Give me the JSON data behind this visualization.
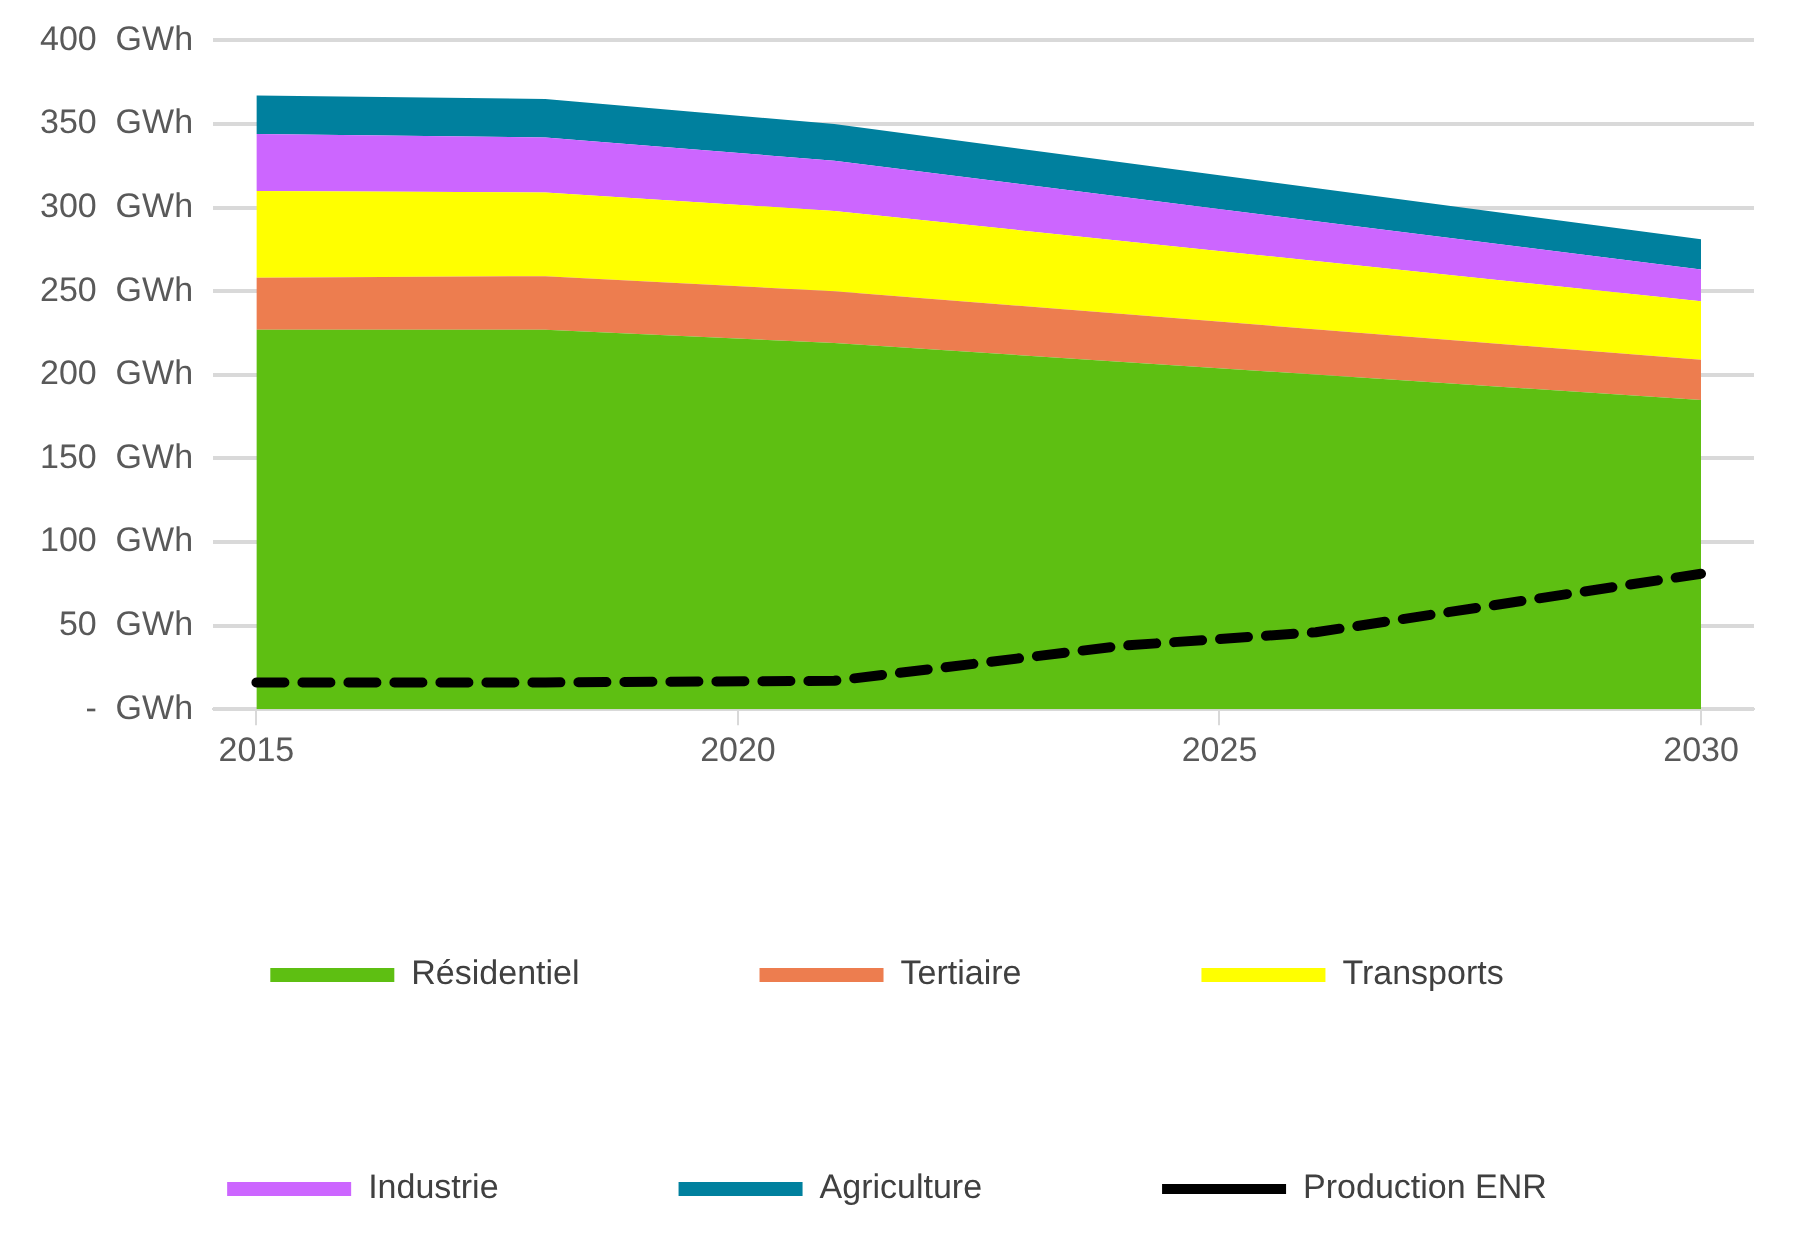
{
  "chart_data": {
    "type": "area",
    "stacked": true,
    "grid": "y",
    "legend": "bottom",
    "xlim": [
      2014.55,
      2030.55
    ],
    "xticks": [
      2015,
      2020,
      2025,
      2030
    ],
    "ylim": [
      0,
      400
    ],
    "yticks": [
      {
        "value": 0,
        "label": "-  GWh"
      },
      {
        "value": 50,
        "label": "50  GWh"
      },
      {
        "value": 100,
        "label": "100  GWh"
      },
      {
        "value": 150,
        "label": "150  GWh"
      },
      {
        "value": 200,
        "label": "200  GWh"
      },
      {
        "value": 250,
        "label": "250  GWh"
      },
      {
        "value": 300,
        "label": "300  GWh"
      },
      {
        "value": 350,
        "label": "350  GWh"
      },
      {
        "value": 400,
        "label": "400  GWh"
      }
    ],
    "x": [
      2015,
      2018,
      2021,
      2030
    ],
    "series": [
      {
        "name": "Résidentiel",
        "color": "#5ebf12",
        "values": [
          227,
          227,
          219,
          185
        ]
      },
      {
        "name": "Tertiaire",
        "color": "#ed7d4f",
        "values": [
          31,
          32,
          31,
          24
        ]
      },
      {
        "name": "Transports",
        "color": "#ffff00",
        "values": [
          52,
          50,
          48,
          35
        ]
      },
      {
        "name": "Industrie",
        "color": "#cc66ff",
        "values": [
          34,
          33,
          30,
          19
        ]
      },
      {
        "name": "Agriculture",
        "color": "#00809e",
        "values": [
          23,
          23,
          22,
          18
        ]
      },
      {
        "name": "Production ENR",
        "type": "line",
        "color": "#000000",
        "line_style": "dashed",
        "marker": "none",
        "x": [
          2015,
          2018,
          2021,
          2024,
          2026,
          2030
        ],
        "values": [
          16,
          16,
          17,
          38,
          46,
          81
        ]
      }
    ]
  }
}
